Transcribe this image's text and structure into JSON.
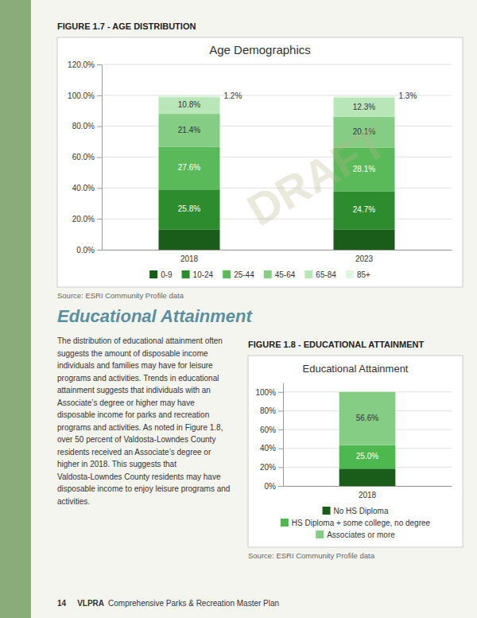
{
  "chart_data": [
    {
      "type": "bar",
      "stacked": true,
      "title": "Age Demographics",
      "annotations": [
        "FIGURE 1.7 - AGE DISTRIBUTION",
        "Source: ESRI Community Profile data",
        "DRAFT"
      ],
      "categories": [
        "2018",
        "2023"
      ],
      "series": [
        {
          "name": "0-9",
          "color": "#1a5c1a",
          "values": [
            13.2,
            13.2
          ],
          "value_labels": [
            null,
            null
          ]
        },
        {
          "name": "10-24",
          "color": "#2d8c2d",
          "values": [
            25.8,
            24.7
          ],
          "value_labels": [
            "25.8%",
            "24.7%"
          ]
        },
        {
          "name": "25-44",
          "color": "#5aba5a",
          "values": [
            27.6,
            28.1
          ],
          "value_labels": [
            "27.6%",
            "28.1%"
          ]
        },
        {
          "name": "45-64",
          "color": "#85cc85",
          "values": [
            21.4,
            20.1
          ],
          "value_labels": [
            "21.4%",
            "20.1%"
          ]
        },
        {
          "name": "65-84",
          "color": "#b8e6b8",
          "values": [
            10.8,
            12.3
          ],
          "value_labels": [
            "10.8%",
            "12.3%"
          ]
        },
        {
          "name": "85+",
          "color": "#e0f5e0",
          "values": [
            1.2,
            1.3
          ],
          "value_labels": [
            "1.2%",
            "1.3%"
          ]
        }
      ],
      "ylim": [
        0,
        120
      ],
      "yticks": [
        {
          "value": 0,
          "label": "0.0%"
        },
        {
          "value": 20,
          "label": "20.0%"
        },
        {
          "value": 40,
          "label": "40.0%"
        },
        {
          "value": 60,
          "label": "60.0%"
        },
        {
          "value": 80,
          "label": "80.0%"
        },
        {
          "value": 100,
          "label": "100.0%"
        },
        {
          "value": 120,
          "label": "120.0%"
        }
      ],
      "grid": true,
      "legend": "bottom",
      "data_labels": true
    },
    {
      "type": "bar",
      "stacked": true,
      "title": "Educational Attainment",
      "annotations": [
        "FIGURE 1.8 - EDUCATIONAL ATTAINMENT",
        "Source: ESRI Community Profile data"
      ],
      "categories": [
        "2018"
      ],
      "series": [
        {
          "name": "No HS Diploma",
          "color": "#1a5c1a",
          "values": [
            18.4
          ],
          "value_labels": [
            null
          ]
        },
        {
          "name": "HS Diploma + some college, no degree",
          "color": "#4db84d",
          "values": [
            25.0
          ],
          "value_labels": [
            "25.0%"
          ]
        },
        {
          "name": "Associates or more",
          "color": "#85cc85",
          "values": [
            56.6
          ],
          "value_labels": [
            "56.6%"
          ]
        }
      ],
      "ylim": [
        0,
        110
      ],
      "yticks": [
        {
          "value": 0,
          "label": "0%"
        },
        {
          "value": 20,
          "label": "20%"
        },
        {
          "value": 40,
          "label": "40%"
        },
        {
          "value": 60,
          "label": "60%"
        },
        {
          "value": 80,
          "label": "80%"
        },
        {
          "value": 100,
          "label": "100%"
        }
      ],
      "grid": true,
      "legend": "bottom",
      "data_labels": true
    }
  ],
  "page": {
    "heading": "Educational Attainment",
    "paragraph": "The distribution of educational attainment often suggests the amount of disposable income individuals and families may have for leisure programs and activities. Trends in educational attainment suggests that individuals with an Associate’s degree or higher may have disposable income for parks and recreation programs and activities. As noted in Figure 1.8, over 50 percent of Valdosta-Lowndes County residents received an Associate’s degree or higher in 2018. This suggests that Valdosta-Lowndes County residents may have disposable income to enjoy leisure programs and activities.",
    "footer": [
      "14",
      "VLPRA",
      "Comprehensive Parks & Recreation Master Plan"
    ]
  }
}
